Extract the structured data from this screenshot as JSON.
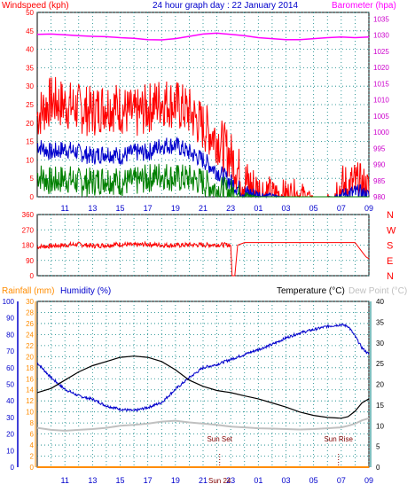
{
  "header": {
    "title": "24 hour graph day : 22 January 2014",
    "left_label": "Windspeed (kph)",
    "right_label": "Barometer (hpa)"
  },
  "colors": {
    "wind_avg": "#0000cc",
    "wind_gust": "#ff0000",
    "wind_green": "#008000",
    "barometer": "#ff00ff",
    "direction": "#ff0000",
    "temperature": "#000000",
    "dewpoint": "#c0c0c0",
    "humidity": "#0000cc",
    "rainfall": "#ff8c00",
    "axis_blue": "#0000cc",
    "axis_teal": "#008080",
    "axis_rain": "#ff8c00",
    "grid": "#008080"
  },
  "x_ticks": [
    "11",
    "13",
    "15",
    "17",
    "19",
    "21",
    "23",
    "01",
    "03",
    "05",
    "07",
    "09"
  ],
  "chart_data": [
    {
      "type": "line",
      "title": "24 hour graph day : 22 January 2014",
      "ylabel": "Windspeed (kph)",
      "y2label": "Barometer (hpa)",
      "ylim": [
        0,
        50
      ],
      "y2lim": [
        980,
        1037
      ],
      "yticks": [
        0,
        5,
        10,
        15,
        20,
        25,
        30,
        35,
        40,
        45,
        50
      ],
      "y2ticks": [
        980,
        985,
        990,
        995,
        1000,
        1005,
        1010,
        1015,
        1020,
        1025,
        1030,
        1035
      ],
      "x_hours": [
        9,
        10,
        11,
        12,
        13,
        14,
        15,
        16,
        17,
        18,
        19,
        20,
        21,
        22,
        23,
        24,
        25,
        26,
        27,
        28,
        29,
        30,
        31,
        32,
        33
      ],
      "series": [
        {
          "name": "Windspeed (kph)",
          "role": "gust",
          "values": [
            22,
            26,
            25,
            24,
            23,
            25,
            24,
            22,
            24,
            26,
            25,
            23,
            19,
            16,
            11,
            4,
            1,
            0.5,
            0.5,
            0.5,
            0,
            0,
            2,
            3,
            1
          ]
        },
        {
          "name": "",
          "role": "average",
          "values": [
            14,
            12,
            13,
            12,
            11,
            12,
            11,
            12,
            12,
            14,
            14,
            12,
            10,
            7,
            4,
            1,
            0.5,
            0.2,
            0,
            0,
            0,
            0,
            0.5,
            1,
            0.5
          ]
        },
        {
          "name": "",
          "role": "green",
          "values": [
            6,
            4,
            5,
            4,
            4,
            5,
            4,
            4,
            5,
            6,
            5,
            5,
            4,
            2,
            1,
            0.3,
            0,
            0,
            0,
            0,
            0,
            0,
            0,
            0,
            0
          ]
        },
        {
          "name": "Barometer (hpa)",
          "axis": "right",
          "values": [
            1030.2,
            1030.3,
            1030.1,
            1029.8,
            1029.6,
            1029.5,
            1029.2,
            1029.0,
            1028.6,
            1028.5,
            1028.9,
            1029.6,
            1030.3,
            1030.6,
            1030.2,
            1029.8,
            1029.2,
            1028.9,
            1028.6,
            1028.6,
            1028.9,
            1029.2,
            1029.4,
            1029.2,
            1029.4
          ]
        }
      ]
    },
    {
      "type": "line",
      "ylabel": "",
      "ylim": [
        0,
        360
      ],
      "yticks": [
        0,
        90,
        180,
        270,
        360
      ],
      "compass_labels": [
        "N",
        "W",
        "S",
        "E",
        "N"
      ],
      "x_hours": [
        9,
        10,
        11,
        12,
        13,
        14,
        15,
        16,
        17,
        18,
        19,
        20,
        21,
        22,
        23,
        23.1,
        23.3,
        23.5,
        24,
        25,
        26,
        27,
        28,
        29,
        30,
        31,
        32,
        32.6,
        32.8,
        33
      ],
      "series": [
        {
          "name": "",
          "values": [
            170,
            175,
            180,
            185,
            175,
            180,
            185,
            180,
            185,
            180,
            178,
            182,
            180,
            183,
            180,
            0,
            0,
            180,
            195,
            195,
            195,
            195,
            195,
            195,
            195,
            195,
            195,
            130,
            110,
            100
          ]
        }
      ]
    },
    {
      "type": "line",
      "title": "Temperature (°C)",
      "ylabel": "Humidity (%)",
      "y0label": "Rainfall (mm)",
      "y2label": "Dew Point (°C)",
      "y_humidity_lim": [
        0,
        100
      ],
      "y_rain_lim": [
        0,
        30
      ],
      "y_temp_lim": [
        0,
        40
      ],
      "humidity_ticks": [
        0,
        10,
        20,
        30,
        40,
        50,
        60,
        70,
        80,
        90,
        100
      ],
      "rain_ticks": [
        0,
        2,
        4,
        6,
        8,
        10,
        12,
        14,
        16,
        18,
        20,
        22,
        24,
        26,
        28,
        30
      ],
      "temp_ticks": [
        0,
        5,
        10,
        15,
        20,
        25,
        30,
        35,
        40
      ],
      "annotations": [
        "Sun Set",
        "Sun Rise",
        "Sun 24"
      ],
      "sun_set_hour": 22.2,
      "sun_rise_hour": 30.8,
      "x_hours": [
        9,
        10,
        11,
        12,
        13,
        14,
        15,
        16,
        17,
        18,
        19,
        20,
        21,
        22,
        23,
        24,
        25,
        26,
        27,
        28,
        29,
        30,
        31,
        31.5,
        32,
        32.5,
        33
      ],
      "series": [
        {
          "name": "Temperature",
          "values": [
            18,
            19,
            21,
            23,
            24.5,
            25.5,
            26.5,
            26.8,
            26.5,
            25.5,
            23.5,
            21,
            19.5,
            18.5,
            18,
            17.2,
            16.5,
            15.5,
            14.5,
            13.3,
            12.5,
            12,
            11.8,
            12.2,
            13.5,
            15.5,
            16.5
          ]
        },
        {
          "name": "Humidity",
          "values": [
            63,
            54,
            47,
            43,
            41,
            37,
            35,
            34,
            36,
            39,
            47,
            54,
            60,
            62,
            65,
            68,
            71,
            74,
            78,
            81,
            83,
            85,
            86,
            85,
            79,
            72,
            68
          ]
        },
        {
          "name": "Dew Point",
          "values": [
            9.5,
            9,
            8.8,
            9,
            9.2,
            9.5,
            10,
            10.2,
            10.5,
            11,
            11.2,
            10.8,
            10.5,
            10.2,
            9.8,
            9.6,
            9.4,
            9.3,
            9.2,
            9.1,
            9.2,
            9.4,
            9.6,
            10,
            10.5,
            11.3,
            11.8
          ]
        },
        {
          "name": "Rainfall",
          "values": [
            0,
            0,
            0,
            0,
            0,
            0,
            0,
            0,
            0,
            0,
            0,
            0,
            0,
            0,
            0,
            0,
            0,
            0,
            0,
            0,
            0,
            0,
            0,
            0,
            0,
            0,
            0
          ]
        }
      ]
    }
  ]
}
